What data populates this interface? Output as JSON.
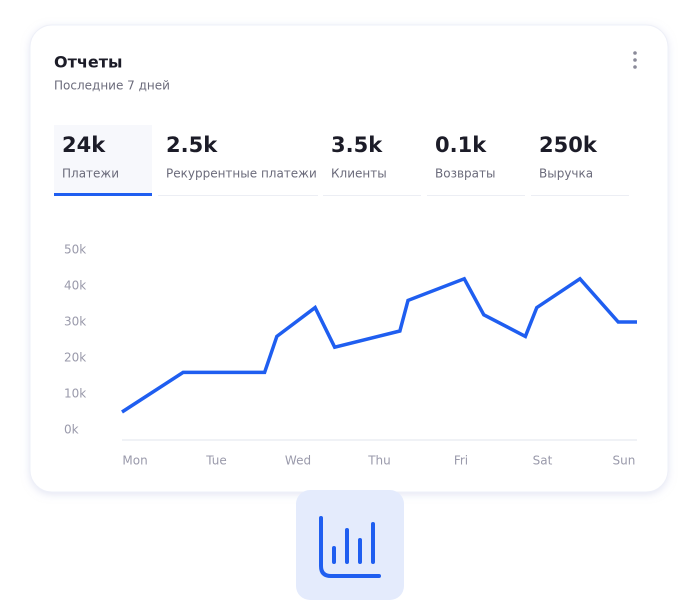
{
  "header": {
    "title": "Отчеты",
    "subtitle": "Последние 7 дней"
  },
  "tabs": [
    {
      "value": "24k",
      "label": "Платежи"
    },
    {
      "value": "2.5k",
      "label": "Рекуррентные платежи"
    },
    {
      "value": "3.5k",
      "label": "Клиенты"
    },
    {
      "value": "0.1k",
      "label": "Возвраты"
    },
    {
      "value": "250k",
      "label": "Выручка"
    }
  ],
  "chart_data": {
    "type": "line",
    "x": [
      -0.16,
      0.59,
      1.59,
      1.74,
      2.21,
      2.45,
      3.25,
      3.35,
      4.04,
      4.28,
      4.79,
      4.93,
      5.46,
      5.93,
      6.16
    ],
    "series": [
      {
        "color": "#1f5ef0",
        "values": [
          5000,
          16000,
          16000,
          26000,
          34000,
          23000,
          27500,
          36000,
          42000,
          32000,
          26000,
          34000,
          42000,
          30000,
          30000
        ]
      }
    ],
    "xlim": [
      -0.16,
      6.16
    ],
    "xticks": [
      {
        "value": 0,
        "label": "Mon"
      },
      {
        "value": 1,
        "label": "Tue"
      },
      {
        "value": 2,
        "label": "Wed"
      },
      {
        "value": 3,
        "label": "Thu"
      },
      {
        "value": 4,
        "label": "Fri"
      },
      {
        "value": 5,
        "label": "Sat"
      },
      {
        "value": 6,
        "label": "Sun"
      }
    ],
    "ylim": [
      0,
      50000
    ],
    "yticks": [
      {
        "value": 0,
        "label": "0k"
      },
      {
        "value": 10000,
        "label": "10k"
      },
      {
        "value": 20000,
        "label": "20k"
      },
      {
        "value": 30000,
        "label": "30k"
      },
      {
        "value": 40000,
        "label": "40k"
      },
      {
        "value": 50000,
        "label": "50k"
      }
    ]
  }
}
